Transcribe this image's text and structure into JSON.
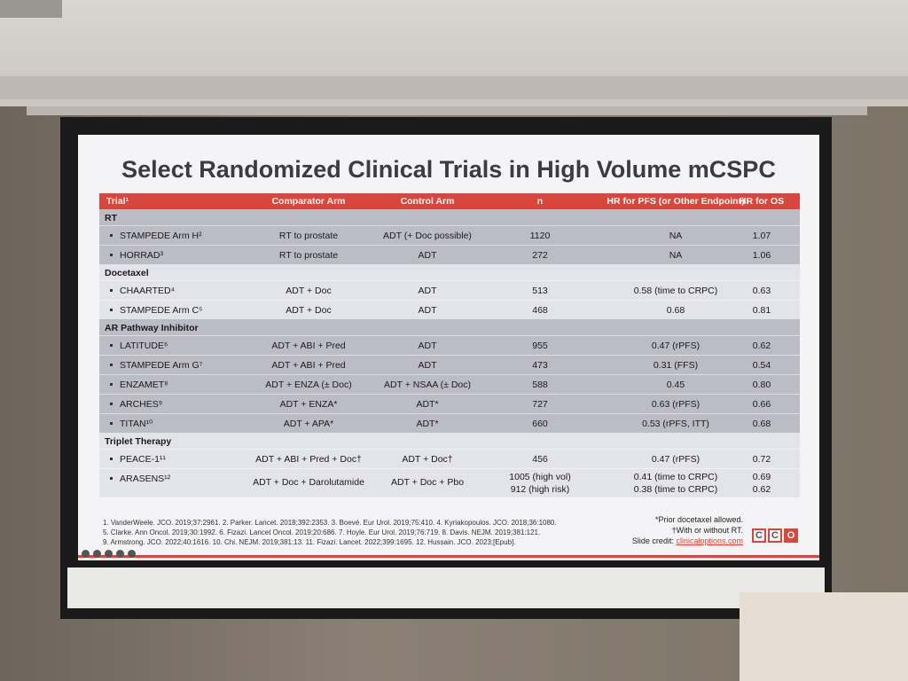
{
  "title": "Select Randomized Clinical Trials in High Volume mCSPC",
  "columns": [
    "Trial¹",
    "Comparator Arm",
    "Control Arm",
    "n",
    "HR for PFS (or Other Endpoint)",
    "HR for OS"
  ],
  "sections": [
    {
      "name": "RT",
      "rows": [
        {
          "trial": "STAMPEDE Arm H²",
          "comparator": "RT to prostate",
          "control": "ADT (+ Doc possible)",
          "n": "1120",
          "pfs": "NA",
          "os": "1.07"
        },
        {
          "trial": "HORRAD³",
          "comparator": "RT to prostate",
          "control": "ADT",
          "n": "272",
          "pfs": "NA",
          "os": "1.06"
        }
      ]
    },
    {
      "name": "Docetaxel",
      "rows": [
        {
          "trial": "CHAARTED⁴",
          "comparator": "ADT + Doc",
          "control": "ADT",
          "n": "513",
          "pfs": "0.58 (time to CRPC)",
          "os": "0.63"
        },
        {
          "trial": "STAMPEDE Arm C⁵",
          "comparator": "ADT + Doc",
          "control": "ADT",
          "n": "468",
          "pfs": "0.68",
          "os": "0.81"
        }
      ]
    },
    {
      "name": "AR Pathway Inhibitor",
      "rows": [
        {
          "trial": "LATITUDE⁶",
          "comparator": "ADT + ABI + Pred",
          "control": "ADT",
          "n": "955",
          "pfs": "0.47 (rPFS)",
          "os": "0.62"
        },
        {
          "trial": "STAMPEDE Arm G⁷",
          "comparator": "ADT + ABI + Pred",
          "control": "ADT",
          "n": "473",
          "pfs": "0.31 (FFS)",
          "os": "0.54"
        },
        {
          "trial": "ENZAMET⁸",
          "comparator": "ADT + ENZA (± Doc)",
          "control": "ADT + NSAA (± Doc)",
          "n": "588",
          "pfs": "0.45",
          "os": "0.80"
        },
        {
          "trial": "ARCHES⁹",
          "comparator": "ADT + ENZA*",
          "control": "ADT*",
          "n": "727",
          "pfs": "0.63 (rPFS)",
          "os": "0.66"
        },
        {
          "trial": "TITAN¹⁰",
          "comparator": "ADT + APA*",
          "control": "ADT*",
          "n": "660",
          "pfs": "0.53 (rPFS, ITT)",
          "os": "0.68"
        }
      ]
    },
    {
      "name": "Triplet Therapy",
      "rows": [
        {
          "trial": "PEACE-1¹¹",
          "comparator": "ADT + ABI + Pred + Doc†",
          "control": "ADT + Doc†",
          "n": "456",
          "pfs": "0.47 (rPFS)",
          "os": "0.72"
        },
        {
          "trial": "ARASENS¹²",
          "comparator": "ADT + Doc + Darolutamide",
          "control": "ADT + Doc + Pbo",
          "n": "1005 (high vol)\n912 (high risk)",
          "pfs": "0.41 (time to CRPC)\n0.38 (time to CRPC)",
          "os": "0.69\n0.62"
        }
      ]
    }
  ],
  "references": [
    "1. VanderWeele. JCO. 2019;37:2961. 2. Parker. Lancet. 2018;392:2353. 3. Boevé. Eur Urol. 2019;75:410. 4. Kyriakopoulos. JCO. 2018;36:1080.",
    "5. Clarke. Ann Oncol. 2019;30:1992. 6. Fizazi. Lancet Oncol. 2019;20:686. 7. Hoyle. Eur Urol. 2019;76:719. 8. Davis. NEJM. 2019;381:121.",
    "9. Armstrong. JCO. 2022;40:1616. 10. Chi. NEJM. 2019;381:13. 11. Fizazi. Lancet. 2022;399:1695. 12. Hussain. JCO. 2023;[Epub]."
  ],
  "notes": {
    "note1": "*Prior docetaxel allowed.",
    "note2": "†With or without RT.",
    "credit_prefix": "Slide credit: ",
    "credit_link": "clinicaloptions.com"
  },
  "logo": [
    "C",
    "C",
    "O"
  ],
  "colors": {
    "accent": "#d8473c",
    "gray_band": "#bcbcc7",
    "light_band": "#e3e3ea"
  }
}
